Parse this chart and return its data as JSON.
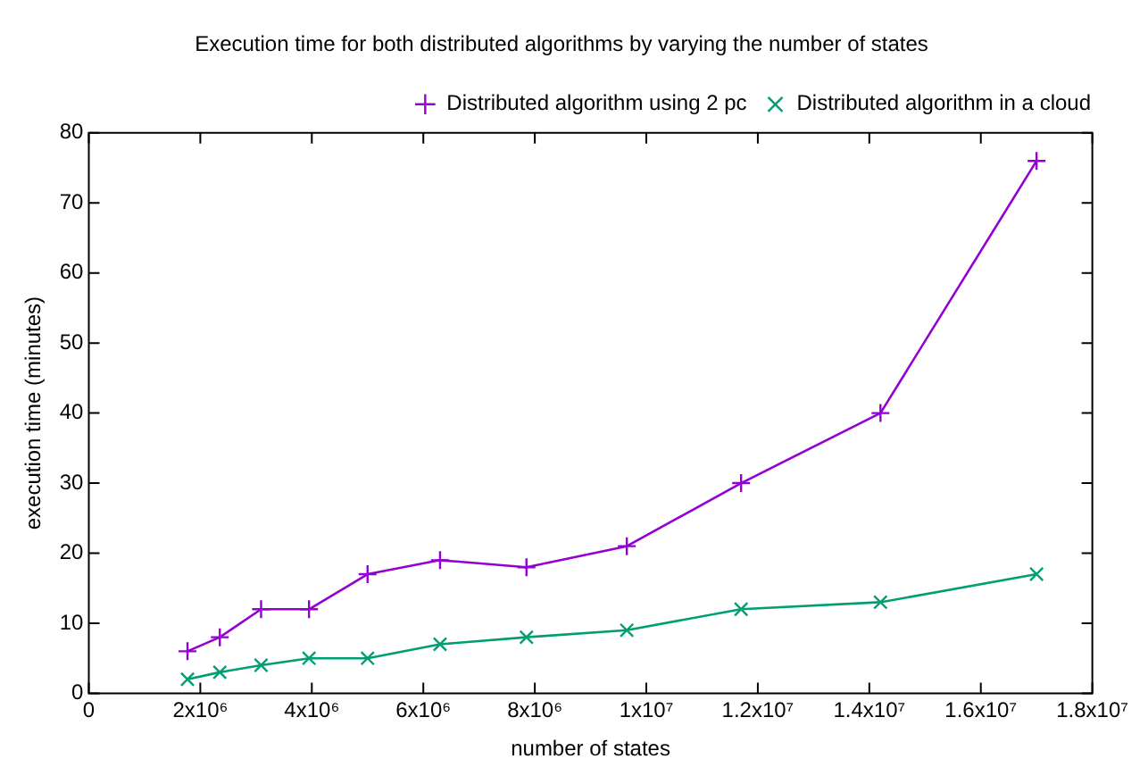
{
  "chart_data": {
    "type": "line",
    "title": "Execution time for both distributed algorithms by varying the number of states",
    "xlabel": "number of states",
    "ylabel": "execution time (minutes)",
    "x": [
      1770000,
      2350000,
      3090000,
      3950000,
      5000000,
      6300000,
      7850000,
      9650000,
      11700000,
      14200000,
      17000000
    ],
    "series": [
      {
        "name": "Distributed algorithm using 2 pc",
        "color": "#9400d3",
        "marker": "cross",
        "values": [
          6,
          8,
          12,
          12,
          17,
          19,
          18,
          21,
          30,
          40,
          76
        ]
      },
      {
        "name": "Distributed algorithm in a cloud",
        "color": "#009e73",
        "marker": "x",
        "values": [
          2,
          3,
          4,
          5,
          5,
          7,
          8,
          9,
          12,
          13,
          17
        ]
      }
    ],
    "xlim": [
      0,
      18000000
    ],
    "xticks": [
      0,
      {
        "value": 2000000,
        "label": "2x10⁶"
      },
      {
        "value": 4000000,
        "label": "4x10⁶"
      },
      {
        "value": 6000000,
        "label": "6x10⁶"
      },
      {
        "value": 8000000,
        "label": "8x10⁶"
      },
      {
        "value": 10000000,
        "label": "1x10⁷"
      },
      {
        "value": 12000000,
        "label": "1.2x10⁷"
      },
      {
        "value": 14000000,
        "label": "1.4x10⁷"
      },
      {
        "value": 16000000,
        "label": "1.6x10⁷"
      },
      {
        "value": 18000000,
        "label": "1.8x10⁷"
      }
    ],
    "ylim": [
      0,
      80
    ],
    "yticks": [
      0,
      10,
      20,
      30,
      40,
      50,
      60,
      70,
      80
    ],
    "grid": false,
    "legend": "top right",
    "line_style": "solid"
  }
}
